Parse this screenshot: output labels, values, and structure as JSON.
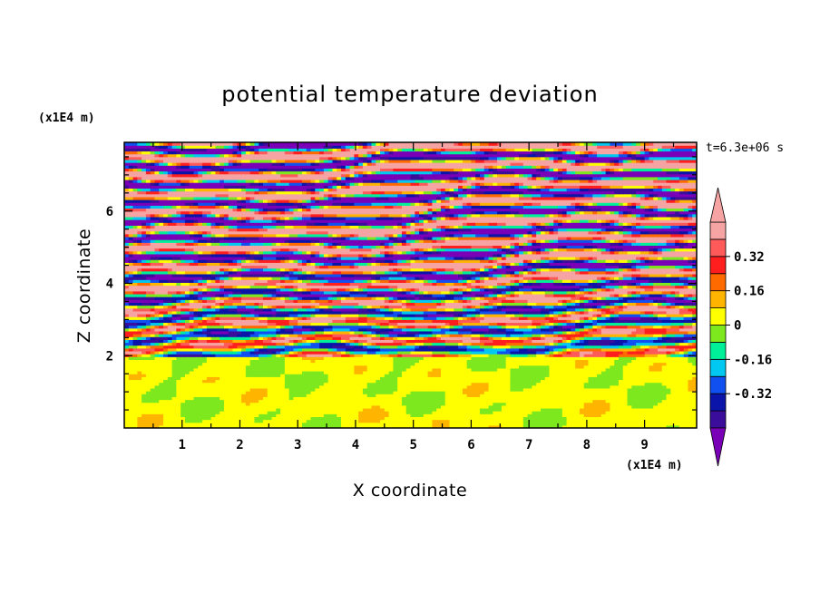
{
  "chart_data": {
    "type": "heatmap",
    "title": "potential temperature deviation",
    "xlabel": "X coordinate",
    "ylabel": "Z coordinate",
    "x_unit_label": "(x1E4 m)",
    "y_unit_label": "(x1E4 m)",
    "time_label": "t=6.3e+06 s",
    "xlim": [
      0,
      9.9
    ],
    "ylim": [
      0,
      7.9
    ],
    "x_ticks": [
      "1",
      "2",
      "3",
      "4",
      "5",
      "6",
      "7",
      "8",
      "9"
    ],
    "y_ticks": [
      "2",
      "4",
      "6"
    ],
    "colorbar": {
      "levels": [
        -0.48,
        -0.4,
        -0.32,
        -0.24,
        -0.16,
        -0.08,
        0,
        0.08,
        0.16,
        0.24,
        0.32,
        0.4,
        0.48
      ],
      "colors": [
        "#7a00b8",
        "#3a0d9a",
        "#0a14a8",
        "#1050f0",
        "#00c8f0",
        "#00f09a",
        "#7ee81e",
        "#ffff00",
        "#ffb400",
        "#ff6a00",
        "#ff1e1e",
        "#ff5a5a",
        "#f5a3a3"
      ],
      "labels": [
        "0.32",
        "0.16",
        "0",
        "-0.16",
        "-0.32"
      ],
      "extend": "both"
    },
    "regions": {
      "lower_layer_z": [
        0,
        2.0
      ],
      "lower_layer_values": "near 0 (mostly 0 to 0.08 with patches -0.08 to 0)",
      "upper_layer_z": [
        2.0,
        7.9
      ],
      "upper_layer_values": "alternating horizontal bands from below -0.48 to above 0.48"
    }
  }
}
